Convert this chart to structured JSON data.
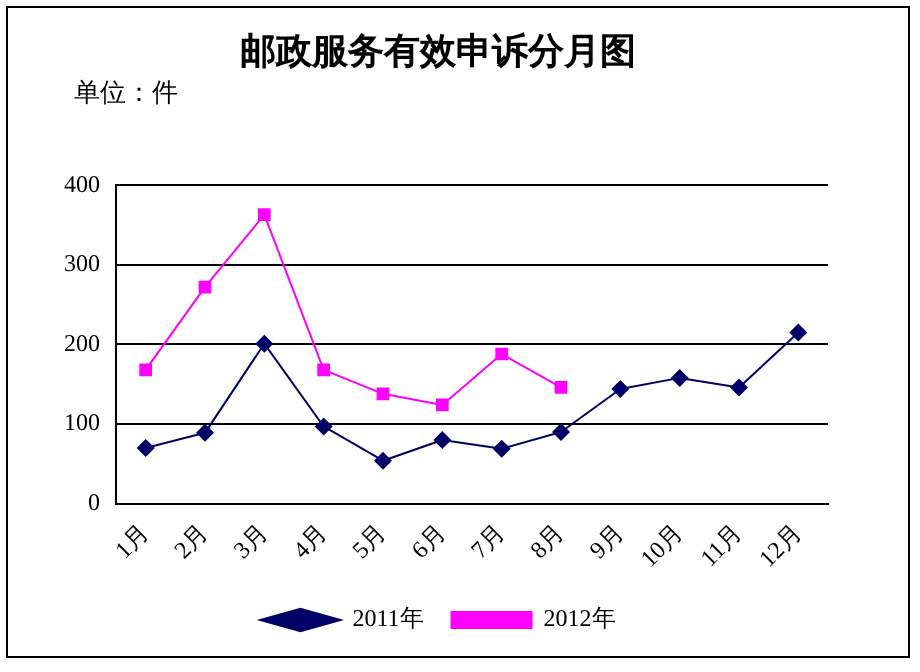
{
  "chart_data": {
    "type": "line",
    "title": "邮政服务有效申诉分月图",
    "annotations": [
      "单位：件"
    ],
    "categories": [
      "1月",
      "2月",
      "3月",
      "4月",
      "5月",
      "6月",
      "7月",
      "8月",
      "9月",
      "10月",
      "11月",
      "12月"
    ],
    "series": [
      {
        "name": "2011年",
        "color": "#000066",
        "marker": "diamond",
        "values": [
          70,
          89,
          201,
          97,
          54,
          80,
          69,
          90,
          144,
          158,
          146,
          215
        ]
      },
      {
        "name": "2012年",
        "color": "#ff00ff",
        "marker": "square",
        "values": [
          168,
          272,
          363,
          168,
          138,
          124,
          188,
          146,
          null,
          null,
          null,
          null
        ]
      }
    ],
    "ylim": [
      0,
      400
    ],
    "yticks": [
      0,
      100,
      200,
      300,
      400
    ],
    "grid": "y",
    "legend": "bottom"
  }
}
